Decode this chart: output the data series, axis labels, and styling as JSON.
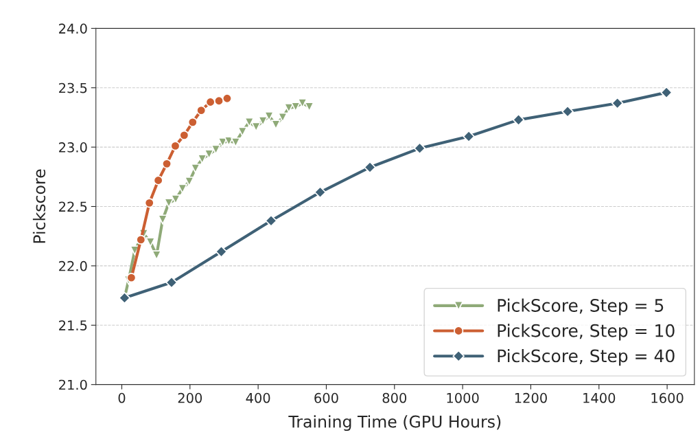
{
  "chart_data": {
    "type": "line",
    "xlabel": "Training Time (GPU Hours)",
    "ylabel": "Pickscore",
    "xlim": [
      -76,
      1680
    ],
    "ylim": [
      21.0,
      24.0
    ],
    "xticks": [
      0,
      200,
      400,
      600,
      800,
      1000,
      1200,
      1400,
      1600
    ],
    "yticks": [
      {
        "value": 21,
        "label": "21.0"
      },
      21.5,
      {
        "value": 22,
        "label": "22.0"
      },
      22.5,
      {
        "value": 23,
        "label": "23.0"
      },
      23.5,
      {
        "value": 24,
        "label": "24.0"
      }
    ],
    "grid": "y",
    "legend": "bottom right",
    "series": [
      {
        "name": "PickScore, Step = 5",
        "color": "#8faa78",
        "marker": "triangle",
        "x": [
          8,
          20,
          38,
          64,
          84,
          102,
          120,
          138,
          158,
          178,
          198,
          216,
          236,
          256,
          276,
          296,
          314,
          334,
          354,
          374,
          394,
          414,
          432,
          452,
          472,
          490,
          510,
          530,
          550
        ],
        "values": [
          21.73,
          21.88,
          22.13,
          22.27,
          22.2,
          22.09,
          22.39,
          22.53,
          22.56,
          22.65,
          22.71,
          22.82,
          22.9,
          22.94,
          22.98,
          23.04,
          23.05,
          23.04,
          23.13,
          23.21,
          23.17,
          23.22,
          23.26,
          23.19,
          23.25,
          23.33,
          23.34,
          23.37,
          23.34
        ]
      },
      {
        "name": "PickScore, Step = 10",
        "color": "#cc5f32",
        "marker": "circle",
        "x": [
          28,
          56,
          81,
          107,
          132,
          157,
          183,
          208,
          233,
          260,
          285,
          309
        ],
        "values": [
          21.9,
          22.22,
          22.53,
          22.72,
          22.86,
          23.01,
          23.1,
          23.21,
          23.31,
          23.38,
          23.39,
          23.41
        ]
      },
      {
        "name": "PickScore, Step = 40",
        "color": "#3f6176",
        "marker": "diamond",
        "x": [
          8,
          146,
          292,
          438,
          582,
          728,
          874,
          1018,
          1164,
          1308,
          1454,
          1598
        ],
        "values": [
          21.73,
          21.86,
          22.12,
          22.38,
          22.62,
          22.83,
          22.99,
          23.09,
          23.23,
          23.3,
          23.37,
          23.46
        ]
      }
    ]
  }
}
